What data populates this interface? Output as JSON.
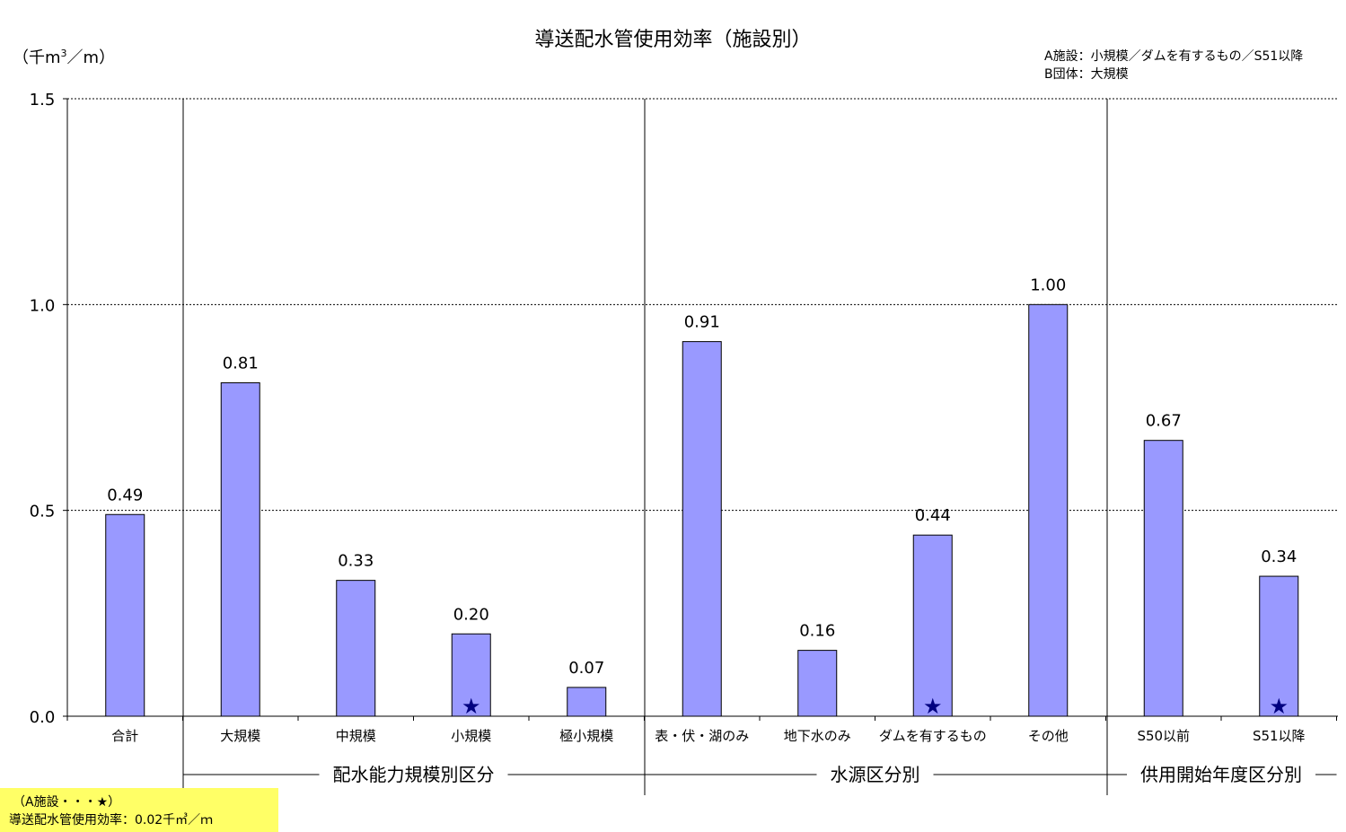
{
  "chart_data": {
    "type": "bar",
    "title": "導送配水管使用効率（施設別）",
    "ylabel_unit": "（千m3／m）",
    "ylim": [
      0,
      1.5
    ],
    "yticks": [
      "0.0",
      "0.5",
      "1.0",
      "1.5"
    ],
    "grid": true,
    "categories": [
      "合計",
      "大規模",
      "中規模",
      "小規模",
      "極小規模",
      "表・伏・湖のみ",
      "地下水のみ",
      "ダムを有するもの",
      "その他",
      "S50以前",
      "S51以降"
    ],
    "values": [
      0.49,
      0.81,
      0.33,
      0.2,
      0.07,
      0.91,
      0.16,
      0.44,
      1.0,
      0.67,
      0.34
    ],
    "value_labels": [
      "0.49",
      "0.81",
      "0.33",
      "0.20",
      "0.07",
      "0.91",
      "0.16",
      "0.44",
      "1.00",
      "0.67",
      "0.34"
    ],
    "star_markers": [
      3,
      7,
      10
    ],
    "groups": [
      {
        "label": "配水能力規模別区分",
        "start": 1,
        "end": 4
      },
      {
        "label": "水源区分別",
        "start": 5,
        "end": 8
      },
      {
        "label": "供用開始年度区分別",
        "start": 9,
        "end": 10
      }
    ],
    "legend": {
      "line1": "A施設：小規模／ダムを有するもの／S51以降",
      "line2": "B団体：大規模"
    },
    "bar_color": "#9999ff",
    "star_color": "#000080"
  },
  "note": {
    "line1": "（A施設・・・★）",
    "line2": "導送配水管使用効率：0.02千㎥／ｍ"
  },
  "unit_main": "（千m",
  "unit_sup": "3",
  "unit_tail": "／m）"
}
